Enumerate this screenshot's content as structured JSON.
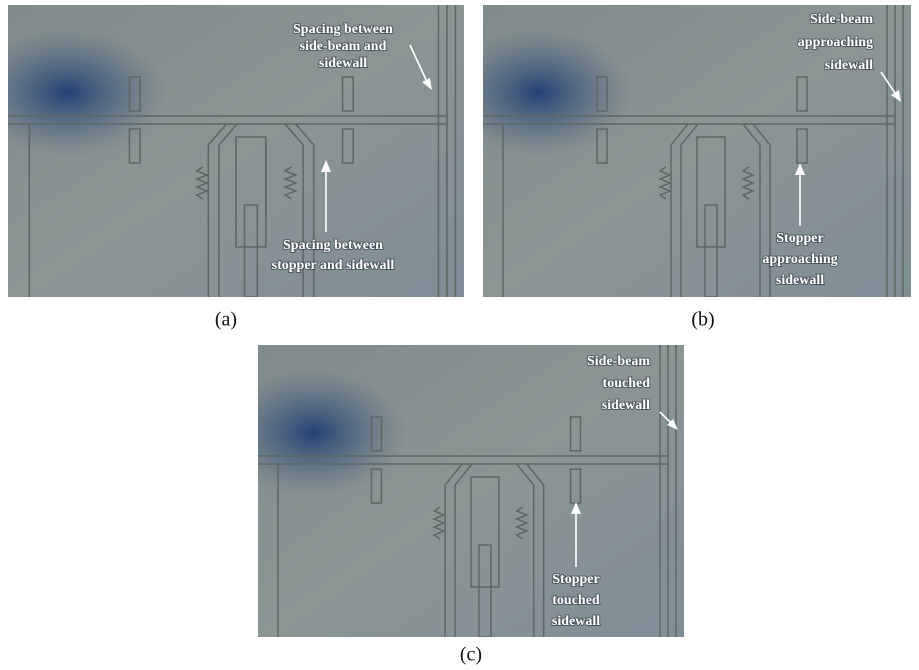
{
  "panels": [
    {
      "label": "(a)",
      "annotations": [
        {
          "lines": [
            "Spacing between",
            "side-beam and",
            "sidewall"
          ]
        },
        {
          "lines": [
            "Spacing between",
            "stopper and sidewall"
          ]
        }
      ]
    },
    {
      "label": "(b)",
      "annotations": [
        {
          "lines": [
            "Side-beam",
            "approaching",
            "sidewall"
          ]
        },
        {
          "lines": [
            "Stopper",
            "approaching",
            "sidewall"
          ]
        }
      ]
    },
    {
      "label": "(c)",
      "annotations": [
        {
          "lines": [
            "Side-beam",
            "touched",
            "sidewall"
          ]
        },
        {
          "lines": [
            "Stopper",
            "touched",
            "sidewall"
          ]
        }
      ]
    }
  ]
}
